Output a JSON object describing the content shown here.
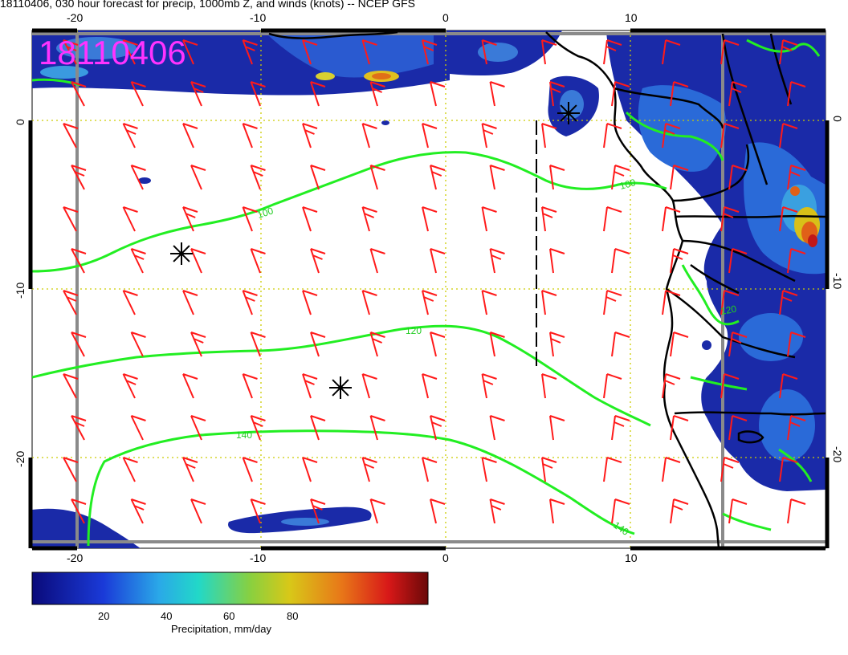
{
  "title": "18110406, 030 hour forecast for precip, 1000mb Z, and winds (knots) -- NCEP GFS",
  "stamp": "18110406",
  "axes": {
    "x_ticks": [
      "-20",
      "-10",
      "0",
      "10"
    ],
    "y_ticks": [
      "0",
      "-10",
      "-20"
    ]
  },
  "contours": [
    {
      "label": "100"
    },
    {
      "label": "120"
    },
    {
      "label": "140"
    }
  ],
  "colorbar": {
    "ticks": [
      "20",
      "40",
      "60",
      "80"
    ],
    "caption": "Precipitation, mm/day"
  },
  "colors": {
    "wind_barb": "#ff1a1a",
    "contour": "#22ee22",
    "grid": "#cccc00",
    "stamp": "#ff33ff",
    "coast": "#000000",
    "precip_low": "#0a1aa0",
    "precip_mid": "#3a7ad8",
    "precip_high": "#e0c020"
  }
}
